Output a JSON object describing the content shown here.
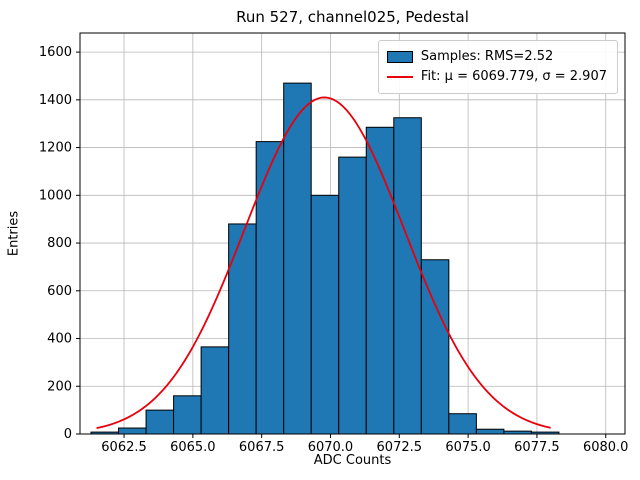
{
  "figure": {
    "title": "Run 527, channel025, Pedestal",
    "xlabel": "ADC Counts",
    "ylabel": "Entries"
  },
  "legend": {
    "samples_label": "Samples: RMS=2.52",
    "fit_label": "Fit: μ = 6069.779, σ = 2.907"
  },
  "colors": {
    "bar_fill": "#1f77b4",
    "bar_edge": "#000000",
    "fit_line": "#e8000b",
    "grid": "#b8b8b8",
    "axes": "#000000",
    "background": "#ffffff",
    "legend_border": "#cccccc"
  },
  "chart_data": {
    "type": "bar",
    "subtype": "histogram-with-gaussian-fit",
    "title": "Run 527, channel025, Pedestal",
    "xlabel": "ADC Counts",
    "ylabel": "Entries",
    "xlim": [
      6060.9,
      6080.7
    ],
    "ylim": [
      0,
      1680
    ],
    "grid": true,
    "legend_position": "upper right",
    "bin_width": 1.0,
    "bin_start": 6061.3,
    "counts": [
      8,
      25,
      100,
      160,
      365,
      880,
      1225,
      1470,
      1000,
      1160,
      1285,
      1325,
      730,
      85,
      20,
      12,
      8
    ],
    "xticks": {
      "values": [
        6062.5,
        6065.0,
        6067.5,
        6070.0,
        6072.5,
        6075.0,
        6077.5,
        6080.0
      ],
      "labels": [
        "6062.5",
        "6065.0",
        "6067.5",
        "6070.0",
        "6072.5",
        "6075.0",
        "6077.5",
        "6080.0"
      ]
    },
    "yticks": {
      "values": [
        0,
        200,
        400,
        600,
        800,
        1000,
        1200,
        1400,
        1600
      ],
      "labels": [
        "0",
        "200",
        "400",
        "600",
        "800",
        "1000",
        "1200",
        "1400",
        "1600"
      ]
    },
    "fit": {
      "type": "gaussian",
      "mu": 6069.779,
      "sigma": 2.907,
      "amplitude": 1410,
      "x_range": [
        6061.5,
        6078.0
      ]
    },
    "series": [
      {
        "name": "Samples: RMS=2.52",
        "kind": "histogram"
      },
      {
        "name": "Fit: μ = 6069.779, σ = 2.907",
        "kind": "line"
      }
    ]
  }
}
